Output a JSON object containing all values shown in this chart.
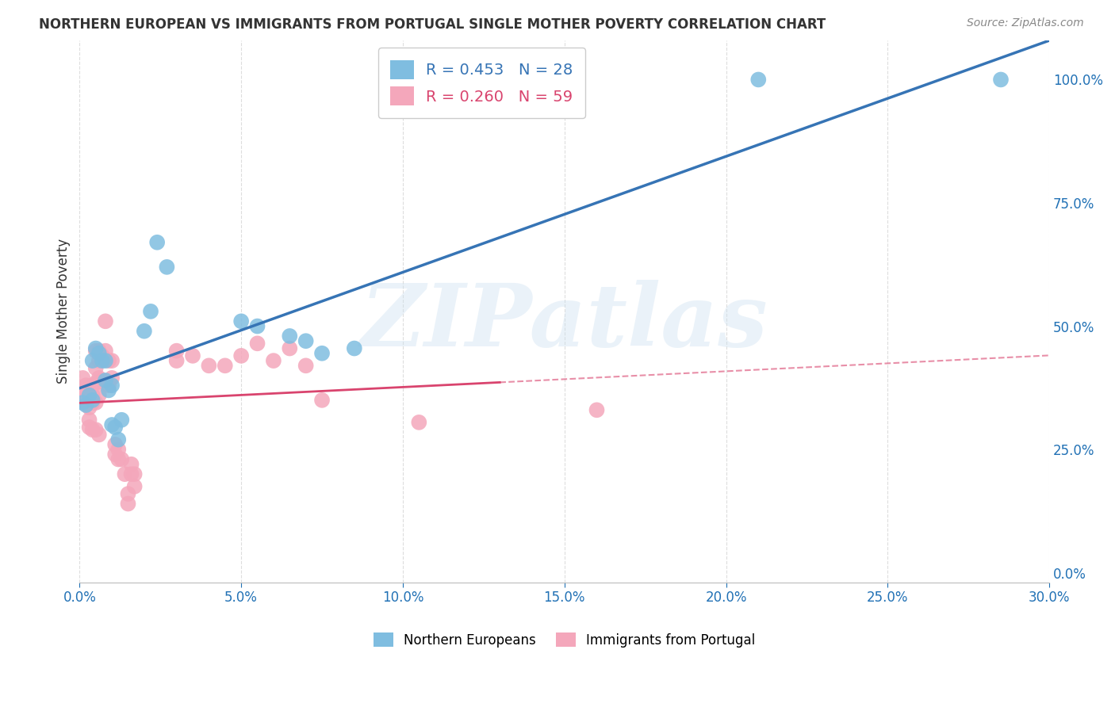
{
  "title": "NORTHERN EUROPEAN VS IMMIGRANTS FROM PORTUGAL SINGLE MOTHER POVERTY CORRELATION CHART",
  "source": "Source: ZipAtlas.com",
  "ylabel": "Single Mother Poverty",
  "xlim": [
    0.0,
    0.3
  ],
  "ylim": [
    -0.02,
    1.08
  ],
  "xticks": [
    0.0,
    0.05,
    0.1,
    0.15,
    0.2,
    0.25,
    0.3
  ],
  "yticks_right": [
    0.0,
    0.25,
    0.5,
    0.75,
    1.0
  ],
  "blue_R": 0.453,
  "blue_N": 28,
  "pink_R": 0.26,
  "pink_N": 59,
  "blue_color": "#7fbde0",
  "pink_color": "#f4a7bb",
  "blue_line_color": "#3674b5",
  "pink_line_color": "#d9446e",
  "blue_scatter": [
    [
      0.001,
      0.345
    ],
    [
      0.002,
      0.34
    ],
    [
      0.003,
      0.36
    ],
    [
      0.004,
      0.35
    ],
    [
      0.004,
      0.43
    ],
    [
      0.005,
      0.455
    ],
    [
      0.006,
      0.445
    ],
    [
      0.007,
      0.43
    ],
    [
      0.008,
      0.43
    ],
    [
      0.008,
      0.39
    ],
    [
      0.009,
      0.37
    ],
    [
      0.01,
      0.38
    ],
    [
      0.01,
      0.3
    ],
    [
      0.011,
      0.295
    ],
    [
      0.012,
      0.27
    ],
    [
      0.013,
      0.31
    ],
    [
      0.02,
      0.49
    ],
    [
      0.022,
      0.53
    ],
    [
      0.024,
      0.67
    ],
    [
      0.027,
      0.62
    ],
    [
      0.05,
      0.51
    ],
    [
      0.055,
      0.5
    ],
    [
      0.065,
      0.48
    ],
    [
      0.07,
      0.47
    ],
    [
      0.075,
      0.445
    ],
    [
      0.085,
      0.455
    ],
    [
      0.21,
      1.0
    ],
    [
      0.285,
      1.0
    ]
  ],
  "pink_scatter": [
    [
      0.001,
      0.395
    ],
    [
      0.001,
      0.36
    ],
    [
      0.001,
      0.35
    ],
    [
      0.002,
      0.38
    ],
    [
      0.002,
      0.37
    ],
    [
      0.002,
      0.355
    ],
    [
      0.002,
      0.345
    ],
    [
      0.003,
      0.37
    ],
    [
      0.003,
      0.36
    ],
    [
      0.003,
      0.335
    ],
    [
      0.003,
      0.31
    ],
    [
      0.003,
      0.295
    ],
    [
      0.004,
      0.38
    ],
    [
      0.004,
      0.36
    ],
    [
      0.004,
      0.345
    ],
    [
      0.004,
      0.29
    ],
    [
      0.005,
      0.45
    ],
    [
      0.005,
      0.415
    ],
    [
      0.005,
      0.385
    ],
    [
      0.005,
      0.345
    ],
    [
      0.005,
      0.29
    ],
    [
      0.006,
      0.45
    ],
    [
      0.006,
      0.43
    ],
    [
      0.006,
      0.395
    ],
    [
      0.006,
      0.36
    ],
    [
      0.006,
      0.28
    ],
    [
      0.007,
      0.44
    ],
    [
      0.007,
      0.39
    ],
    [
      0.008,
      0.51
    ],
    [
      0.008,
      0.45
    ],
    [
      0.009,
      0.43
    ],
    [
      0.009,
      0.38
    ],
    [
      0.01,
      0.43
    ],
    [
      0.01,
      0.395
    ],
    [
      0.011,
      0.26
    ],
    [
      0.011,
      0.24
    ],
    [
      0.012,
      0.25
    ],
    [
      0.012,
      0.23
    ],
    [
      0.013,
      0.23
    ],
    [
      0.014,
      0.2
    ],
    [
      0.015,
      0.16
    ],
    [
      0.015,
      0.14
    ],
    [
      0.016,
      0.22
    ],
    [
      0.016,
      0.2
    ],
    [
      0.017,
      0.2
    ],
    [
      0.017,
      0.175
    ],
    [
      0.03,
      0.45
    ],
    [
      0.03,
      0.43
    ],
    [
      0.035,
      0.44
    ],
    [
      0.04,
      0.42
    ],
    [
      0.045,
      0.42
    ],
    [
      0.05,
      0.44
    ],
    [
      0.055,
      0.465
    ],
    [
      0.06,
      0.43
    ],
    [
      0.065,
      0.455
    ],
    [
      0.07,
      0.42
    ],
    [
      0.075,
      0.35
    ],
    [
      0.105,
      0.305
    ],
    [
      0.16,
      0.33
    ]
  ],
  "pink_line_solid_end": 0.13,
  "watermark": "ZIPatlas",
  "background_color": "#ffffff",
  "grid_color": "#dddddd",
  "title_color": "#333333",
  "axis_color": "#2171b5",
  "legend_label_blue": "R = 0.453   N = 28",
  "legend_label_pink": "R = 0.260   N = 59",
  "bottom_label_blue": "Northern Europeans",
  "bottom_label_pink": "Immigrants from Portugal"
}
